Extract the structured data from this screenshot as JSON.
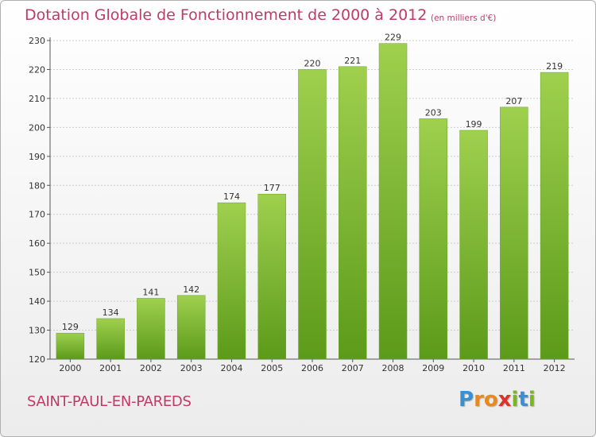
{
  "chart_data": {
    "type": "bar",
    "title": "Dotation Globale de Fonctionnement de 2000 à 2012",
    "subtitle": "(en milliers d'€)",
    "categories": [
      "2000",
      "2001",
      "2002",
      "2003",
      "2004",
      "2005",
      "2006",
      "2007",
      "2008",
      "2009",
      "2010",
      "2011",
      "2012"
    ],
    "values": [
      129,
      134,
      141,
      142,
      174,
      177,
      220,
      221,
      229,
      203,
      199,
      207,
      219
    ],
    "ylim": [
      120,
      230
    ],
    "yticks": [
      120,
      130,
      140,
      150,
      160,
      170,
      180,
      190,
      200,
      210,
      220,
      230
    ],
    "grid": true,
    "colors": {
      "bar_top": "#9fd04e",
      "bar_bottom": "#5c9a1a",
      "text_accent": "#c03a66"
    }
  },
  "commune": "SAINT-PAUL-EN-PAREDS",
  "logo": {
    "letters": [
      {
        "ch": "P",
        "color": "#3a8fd1"
      },
      {
        "ch": "r",
        "color": "#e58a1f"
      },
      {
        "ch": "o",
        "color": "#e58a1f"
      },
      {
        "ch": "x",
        "color": "#d8352c"
      },
      {
        "ch": "i",
        "color": "#7ab528"
      },
      {
        "ch": "t",
        "color": "#3a8fd1"
      },
      {
        "ch": "i",
        "color": "#7ab528"
      }
    ]
  }
}
